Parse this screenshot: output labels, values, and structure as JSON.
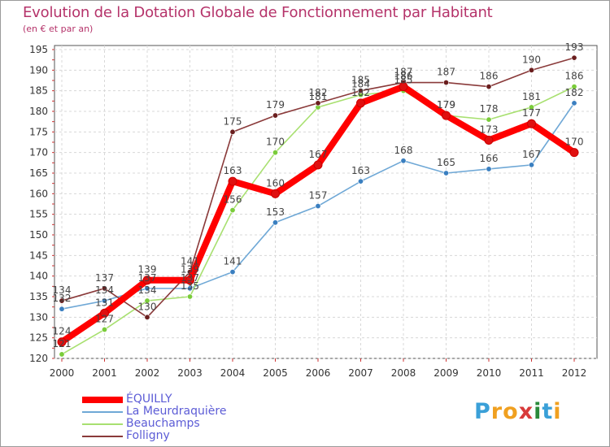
{
  "title": "Evolution de la Dotation Globale de Fonctionnement par Habitant",
  "subtitle": "(en € et par an)",
  "brand": {
    "text": "Proxiti",
    "letters": [
      "P",
      "r",
      "o",
      "x",
      "i",
      "t",
      "i"
    ],
    "letter_colors": [
      "#3aa0d8",
      "#f0a020",
      "#f0a020",
      "#d83a3a",
      "#2a8a3a",
      "#3aa0d8",
      "#f0a020"
    ]
  },
  "chart_data": {
    "type": "line",
    "title": "Evolution de la Dotation Globale de Fonctionnement par Habitant",
    "subtitle": "(en € et par an)",
    "xlabel": "",
    "ylabel": "",
    "x": [
      "2000",
      "2001",
      "2002",
      "2003",
      "2004",
      "2005",
      "2006",
      "2007",
      "2008",
      "2009",
      "2010",
      "2011",
      "2012"
    ],
    "ylim": [
      120,
      195
    ],
    "yticks": [
      120,
      125,
      130,
      135,
      140,
      145,
      150,
      155,
      160,
      165,
      170,
      175,
      180,
      185,
      190,
      195
    ],
    "grid": true,
    "legend_position": "bottom-left",
    "series": [
      {
        "name": "ÉQUILLY",
        "color": "#ff0000",
        "marker_color": "#e01010",
        "values": [
          124,
          131,
          139,
          139,
          163,
          160,
          167,
          182,
          186,
          179,
          173,
          177,
          170
        ],
        "labels": [
          "124",
          "131",
          "139",
          "139",
          "163",
          "160",
          "167",
          "182",
          "186",
          "179",
          "173",
          "177",
          "170"
        ]
      },
      {
        "name": "La Meurdraquière",
        "color": "#6fa8d6",
        "marker_color": "#3a7fc0",
        "values": [
          132,
          134,
          137,
          137,
          141,
          153,
          157,
          163,
          168,
          165,
          166,
          167,
          182
        ],
        "labels": [
          "132",
          "134",
          "137",
          "137",
          "141",
          "153",
          "157",
          "163",
          "168",
          "165",
          "166",
          "167",
          "182"
        ]
      },
      {
        "name": "Beauchamps",
        "color": "#a8e070",
        "marker_color": "#7acc3a",
        "values": [
          121,
          127,
          134,
          135,
          156,
          170,
          181,
          184,
          185,
          179,
          178,
          181,
          186
        ],
        "labels": [
          "121",
          "127",
          "134",
          "135",
          "156",
          "170",
          "181",
          "184",
          "185",
          "179",
          "178",
          "181",
          "186"
        ]
      },
      {
        "name": "Folligny",
        "color": "#8a3a3a",
        "marker_color": "#6a1e1e",
        "values": [
          134,
          137,
          130,
          141,
          175,
          179,
          182,
          185,
          187,
          187,
          186,
          190,
          193
        ],
        "labels": [
          "134",
          "137",
          "130",
          "141",
          "175",
          "179",
          "182",
          "185",
          "187",
          "187",
          "186",
          "190",
          "193"
        ]
      }
    ]
  }
}
